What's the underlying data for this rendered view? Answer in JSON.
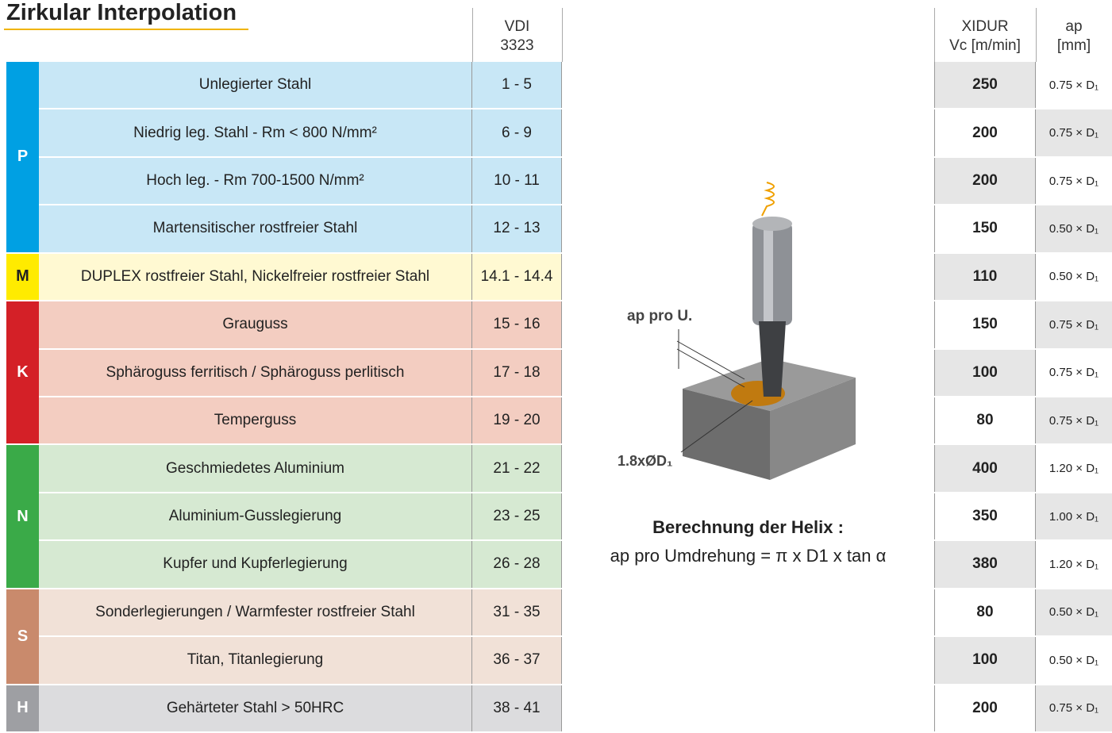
{
  "title": "Zirkular Interpolation",
  "header": {
    "vdi": [
      "VDI",
      "3323"
    ],
    "vc": [
      "XIDUR",
      "Vc [m/min]"
    ],
    "ap": [
      "ap",
      "[mm]"
    ]
  },
  "groups": [
    {
      "label": "P",
      "rows": [
        {
          "material": "Unlegierter Stahl",
          "vdi": "1 - 5",
          "vc": 250,
          "ap": "0.75 × D₁"
        },
        {
          "material": "Niedrig leg. Stahl - Rm < 800 N/mm²",
          "vdi": "6 - 9",
          "vc": 200,
          "ap": "0.75 × D₁"
        },
        {
          "material": "Hoch leg. - Rm 700-1500  N/mm²",
          "vdi": "10 - 11",
          "vc": 200,
          "ap": "0.75 × D₁"
        },
        {
          "material": "Martensitischer rostfreier Stahl",
          "vdi": "12 - 13",
          "vc": 150,
          "ap": "0.50 × D₁"
        }
      ]
    },
    {
      "label": "M",
      "rows": [
        {
          "material": "DUPLEX rostfreier Stahl, Nickelfreier rostfreier Stahl",
          "vdi": "14.1 - 14.4",
          "vc": 110,
          "ap": "0.50 × D₁"
        }
      ]
    },
    {
      "label": "K",
      "rows": [
        {
          "material": "Grauguss",
          "vdi": "15 - 16",
          "vc": 150,
          "ap": "0.75 × D₁"
        },
        {
          "material": "Sphäroguss ferritisch / Sphäroguss perlitisch",
          "vdi": "17 - 18",
          "vc": 100,
          "ap": "0.75 × D₁"
        },
        {
          "material": "Temperguss",
          "vdi": "19 - 20",
          "vc": 80,
          "ap": "0.75 × D₁"
        }
      ]
    },
    {
      "label": "N",
      "rows": [
        {
          "material": "Geschmiedetes Aluminium",
          "vdi": "21 - 22",
          "vc": 400,
          "ap": "1.20 × D₁"
        },
        {
          "material": "Aluminium-Gusslegierung",
          "vdi": "23 - 25",
          "vc": 350,
          "ap": "1.00 × D₁"
        },
        {
          "material": "Kupfer und Kupferlegierung",
          "vdi": "26 - 28",
          "vc": 380,
          "ap": "1.20 × D₁"
        }
      ]
    },
    {
      "label": "S",
      "rows": [
        {
          "material": "Sonderlegierungen / Warmfester rostfreier Stahl",
          "vdi": "31 - 35",
          "vc": 80,
          "ap": "0.50 × D₁"
        },
        {
          "material": "Titan, Titanlegierung",
          "vdi": "36 - 37",
          "vc": 100,
          "ap": "0.50 × D₁"
        }
      ]
    },
    {
      "label": "H",
      "rows": [
        {
          "material": "Gehärteter Stahl > 50HRC",
          "vdi": "38 - 41",
          "vc": 200,
          "ap": "0.75 × D₁"
        }
      ]
    }
  ],
  "figure": {
    "ap_label": "ap pro U.",
    "diameter_label": "1.8xØD₁",
    "formula_title": "Berechnung der Helix :",
    "formula": "ap pro Umdrehung = π x D1 x tan α"
  }
}
